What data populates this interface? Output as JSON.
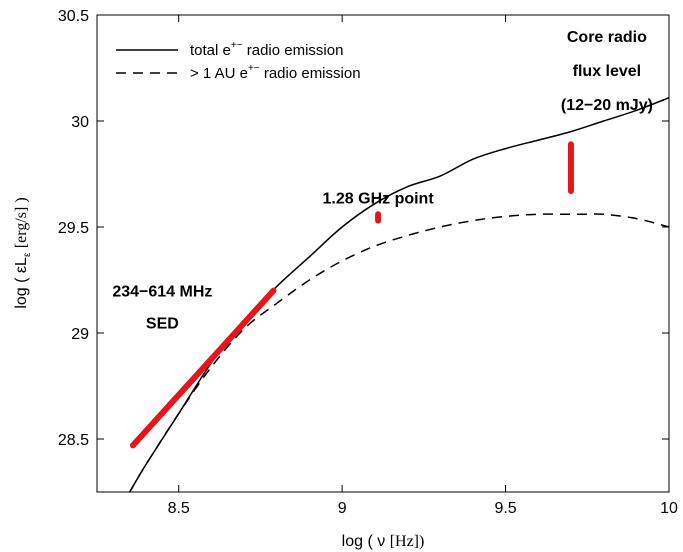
{
  "chart_data": {
    "type": "line",
    "xlabel_prefix": "log ( ν",
    "xlabel_unit": "[Hz])",
    "ylabel_prefix": "log ( εL",
    "ylabel_sub": "ε",
    "ylabel_unit": "[erg/s] )",
    "xlim": [
      8.25,
      10.0
    ],
    "ylim": [
      28.25,
      30.5
    ],
    "x_ticks": [
      8.5,
      9,
      9.5,
      10
    ],
    "x_tick_labels": [
      "8.5",
      "9",
      "9.5",
      "10"
    ],
    "y_ticks": [
      28.5,
      29,
      29.5,
      30,
      30.5
    ],
    "y_tick_labels": [
      "28.5",
      "29",
      "29.5",
      "30",
      "30.5"
    ],
    "grid": false,
    "legend_position": "top-left",
    "series": [
      {
        "name_main": "total e",
        "name_sup": "+−",
        "name_tail": " radio emission",
        "style": "solid",
        "color": "#000000",
        "points": [
          [
            8.35,
            28.25
          ],
          [
            8.4,
            28.38
          ],
          [
            8.5,
            28.62
          ],
          [
            8.6,
            28.86
          ],
          [
            8.7,
            29.06
          ],
          [
            8.8,
            29.22
          ],
          [
            8.9,
            29.36
          ],
          [
            9.0,
            29.5
          ],
          [
            9.1,
            29.61
          ],
          [
            9.2,
            29.69
          ],
          [
            9.3,
            29.74
          ],
          [
            9.4,
            29.82
          ],
          [
            9.5,
            29.87
          ],
          [
            9.6,
            29.91
          ],
          [
            9.7,
            29.95
          ],
          [
            9.8,
            30.0
          ],
          [
            9.9,
            30.05
          ],
          [
            10.0,
            30.11
          ]
        ]
      },
      {
        "name_main": "> 1 AU e",
        "name_sup": "+−",
        "name_tail": " radio emission",
        "style": "dashed",
        "color": "#000000",
        "points": [
          [
            8.35,
            28.25
          ],
          [
            8.4,
            28.38
          ],
          [
            8.5,
            28.62
          ],
          [
            8.6,
            28.84
          ],
          [
            8.7,
            29.02
          ],
          [
            8.8,
            29.14
          ],
          [
            8.9,
            29.25
          ],
          [
            9.0,
            29.34
          ],
          [
            9.1,
            29.41
          ],
          [
            9.2,
            29.46
          ],
          [
            9.3,
            29.5
          ],
          [
            9.4,
            29.53
          ],
          [
            9.5,
            29.55
          ],
          [
            9.6,
            29.56
          ],
          [
            9.7,
            29.56
          ],
          [
            9.75,
            29.56
          ],
          [
            9.8,
            29.56
          ],
          [
            9.9,
            29.54
          ],
          [
            10.0,
            29.5
          ]
        ]
      }
    ],
    "observations": [
      {
        "x": [
          8.36,
          8.79
        ],
        "y": [
          28.47,
          29.2
        ],
        "color": "#e8141c"
      },
      {
        "x": [
          9.11,
          9.11
        ],
        "y": [
          29.53,
          29.56
        ],
        "color": "#e8141c"
      },
      {
        "x": [
          9.7,
          9.7
        ],
        "y": [
          29.67,
          29.89
        ],
        "color": "#e8141c"
      }
    ],
    "annotations": [
      {
        "lines": [
          "234−614 MHz",
          "SED"
        ],
        "x": 8.45,
        "y": [
          29.2,
          29.05
        ]
      },
      {
        "lines": [
          "1.28 GHz point"
        ],
        "x": 9.11,
        "y": [
          29.64
        ]
      },
      {
        "lines": [
          "Core radio",
          "flux level",
          "(12−20 mJy)"
        ],
        "x": 9.81,
        "y": [
          30.4,
          30.24,
          30.08
        ]
      }
    ]
  }
}
